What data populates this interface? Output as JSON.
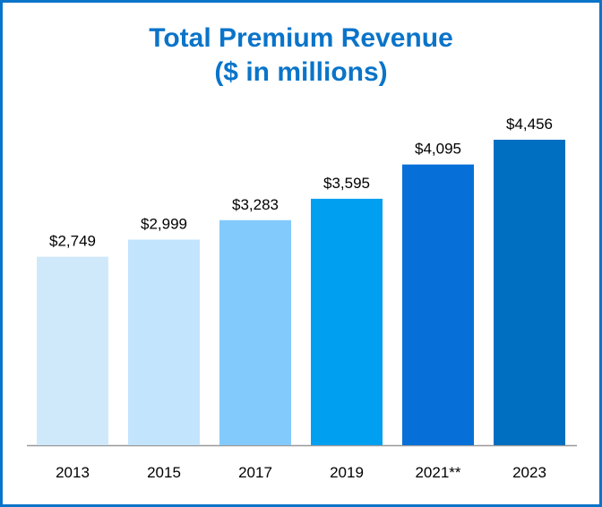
{
  "chart_data": {
    "type": "bar",
    "title": "Total Premium Revenue",
    "subtitle": "($ in millions)",
    "categories": [
      "2013",
      "2015",
      "2017",
      "2019",
      "2021**",
      "2023"
    ],
    "values": [
      2749,
      2999,
      3283,
      3595,
      4095,
      4456
    ],
    "value_labels": [
      "$2,749",
      "$2,999",
      "$3,283",
      "$3,595",
      "$4,095",
      "$4,456"
    ],
    "colors": [
      "#cfe9fb",
      "#c3e4fd",
      "#83cafc",
      "#009ff0",
      "#0770d8",
      "#006fc2"
    ],
    "ylim": [
      0,
      4456
    ],
    "grid": false,
    "legend": "none",
    "xlabel": "",
    "ylabel": ""
  },
  "colors": {
    "title": "#0a74c9",
    "border": "#0a74c9",
    "axis": "#999999"
  }
}
